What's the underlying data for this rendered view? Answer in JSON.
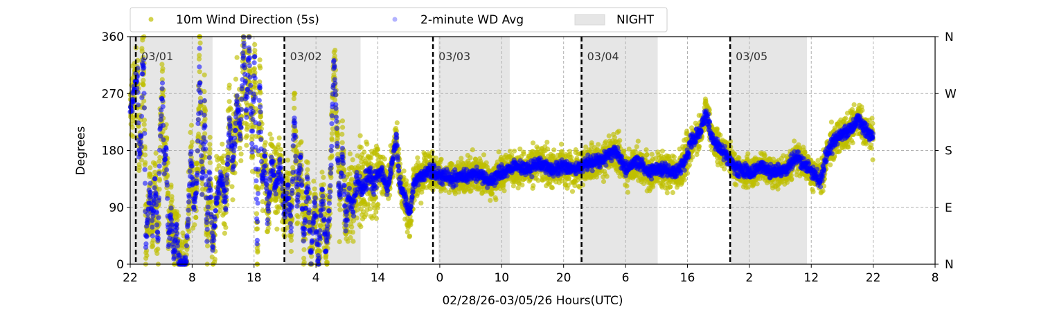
{
  "chart_data": {
    "type": "scatter",
    "xlabel": "02/28/26-03/05/26  Hours(UTC)",
    "ylabel": "Degrees",
    "ylim": [
      0,
      360
    ],
    "xlim_hours_from_start": [
      0,
      130
    ],
    "x_tick_labels": [
      "22",
      "8",
      "18",
      "4",
      "14",
      "0",
      "10",
      "20",
      "6",
      "16",
      "2",
      "12",
      "22",
      "8"
    ],
    "y_ticks": [
      0,
      90,
      180,
      270,
      360
    ],
    "y_right_tick_labels": [
      "N",
      "E",
      "S",
      "W",
      "N"
    ],
    "grid": true,
    "legend": {
      "placement": "top",
      "entries": [
        {
          "label": "10m Wind Direction (5s)",
          "color": "#bfbf00"
        },
        {
          "label": "2-minute WD Avg",
          "color": "#0000ff"
        },
        {
          "label": "NIGHT",
          "color": "#e6e6e6"
        }
      ]
    },
    "night_periods_hours": [
      [
        0,
        13.3
      ],
      [
        25,
        37.2
      ],
      [
        49.8,
        61.3
      ],
      [
        72.6,
        85.2
      ],
      [
        97,
        109.3
      ]
    ],
    "day_markers": [
      {
        "hour": 0.9,
        "label": "03/01"
      },
      {
        "hour": 24.9,
        "label": "03/02"
      },
      {
        "hour": 48.9,
        "label": "03/03"
      },
      {
        "hour": 72.9,
        "label": "03/04"
      },
      {
        "hour": 96.9,
        "label": "03/05"
      }
    ],
    "data_end_hour": 120,
    "series": [
      {
        "name": "2-minute WD Avg",
        "color": "#0000ff",
        "trend_hour_deg": [
          [
            0,
            240
          ],
          [
            0.6,
            270
          ],
          [
            1.2,
            300
          ],
          [
            1.4,
            180
          ],
          [
            1.8,
            190
          ],
          [
            1.9,
            310
          ],
          [
            2.2,
            320
          ],
          [
            2.5,
            30
          ],
          [
            2.8,
            70
          ],
          [
            3.2,
            120
          ],
          [
            3.6,
            60
          ],
          [
            4,
            130
          ],
          [
            4.5,
            40
          ],
          [
            4.8,
            200
          ],
          [
            5.2,
            280
          ],
          [
            5.5,
            150
          ],
          [
            5.8,
            190
          ],
          [
            6.2,
            30
          ],
          [
            6.6,
            90
          ],
          [
            7,
            10
          ],
          [
            7.5,
            60
          ],
          [
            7.8,
            0
          ],
          [
            9,
            0
          ],
          [
            9.3,
            60
          ],
          [
            9.8,
            170
          ],
          [
            10.3,
            90
          ],
          [
            10.8,
            140
          ],
          [
            11.2,
            330
          ],
          [
            11.6,
            120
          ],
          [
            12,
            250
          ],
          [
            12.4,
            40
          ],
          [
            12.8,
            160
          ],
          [
            13.3,
            20
          ],
          [
            14,
            110
          ],
          [
            14.8,
            140
          ],
          [
            15.4,
            90
          ],
          [
            16,
            230
          ],
          [
            16.6,
            150
          ],
          [
            17.2,
            260
          ],
          [
            17.8,
            200
          ],
          [
            18.3,
            350
          ],
          [
            18.8,
            240
          ],
          [
            19.2,
            360
          ],
          [
            19.7,
            180
          ],
          [
            20.1,
            340
          ],
          [
            20.5,
            20
          ],
          [
            20.9,
            300
          ],
          [
            21.3,
            120
          ],
          [
            21.7,
            170
          ],
          [
            22.2,
            80
          ],
          [
            22.8,
            160
          ],
          [
            23.5,
            120
          ],
          [
            24.2,
            160
          ],
          [
            24.9,
            80
          ],
          [
            25.5,
            120
          ],
          [
            26,
            60
          ],
          [
            26.5,
            240
          ],
          [
            27,
            100
          ],
          [
            27.5,
            180
          ],
          [
            28,
            30
          ],
          [
            28.6,
            140
          ],
          [
            29.2,
            10
          ],
          [
            29.8,
            100
          ],
          [
            30.4,
            0
          ],
          [
            31,
            120
          ],
          [
            31.6,
            20
          ],
          [
            32.2,
            90
          ],
          [
            32.9,
            330
          ],
          [
            33.3,
            230
          ],
          [
            33.8,
            100
          ],
          [
            34.3,
            180
          ],
          [
            34.8,
            60
          ],
          [
            35.3,
            110
          ],
          [
            36,
            90
          ],
          [
            36.6,
            130
          ],
          [
            37.5,
            120
          ],
          [
            38.5,
            140
          ],
          [
            39.5,
            130
          ],
          [
            40.5,
            150
          ],
          [
            41.5,
            120
          ],
          [
            42.5,
            170
          ],
          [
            43,
            200
          ],
          [
            43.5,
            130
          ],
          [
            44.5,
            100
          ],
          [
            45.2,
            80
          ],
          [
            45.8,
            130
          ],
          [
            47,
            140
          ],
          [
            48.5,
            150
          ],
          [
            50,
            140
          ],
          [
            52,
            135
          ],
          [
            54,
            140
          ],
          [
            56,
            145
          ],
          [
            58,
            130
          ],
          [
            60,
            145
          ],
          [
            62,
            155
          ],
          [
            64,
            150
          ],
          [
            66,
            160
          ],
          [
            68,
            150
          ],
          [
            70,
            155
          ],
          [
            72,
            150
          ],
          [
            74,
            160
          ],
          [
            76,
            165
          ],
          [
            78.5,
            180
          ],
          [
            80,
            150
          ],
          [
            82,
            160
          ],
          [
            84,
            145
          ],
          [
            86,
            150
          ],
          [
            88,
            145
          ],
          [
            89.5,
            160
          ],
          [
            90.5,
            190
          ],
          [
            92,
            210
          ],
          [
            93,
            240
          ],
          [
            94,
            200
          ],
          [
            95,
            185
          ],
          [
            96.5,
            170
          ],
          [
            98,
            150
          ],
          [
            100,
            145
          ],
          [
            102,
            155
          ],
          [
            104,
            145
          ],
          [
            106,
            150
          ],
          [
            107.5,
            170
          ],
          [
            109,
            160
          ],
          [
            110.5,
            140
          ],
          [
            111.5,
            130
          ],
          [
            112.5,
            175
          ],
          [
            114,
            200
          ],
          [
            116,
            210
          ],
          [
            117.5,
            230
          ],
          [
            119,
            210
          ],
          [
            120,
            200
          ]
        ],
        "noise_deg": 6
      },
      {
        "name": "10m Wind Direction (5s)",
        "color": "#bfbf00",
        "follows": "2-minute WD Avg",
        "spread_hour_deg": [
          [
            0,
            40
          ],
          [
            40,
            40
          ],
          [
            41,
            30
          ],
          [
            45,
            45
          ],
          [
            48,
            30
          ],
          [
            85,
            30
          ],
          [
            90,
            35
          ],
          [
            95,
            25
          ],
          [
            110,
            25
          ],
          [
            112,
            30
          ],
          [
            120,
            30
          ]
        ]
      }
    ]
  }
}
